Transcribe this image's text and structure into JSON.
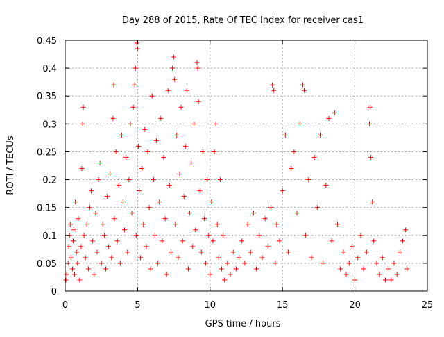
{
  "chart_data": {
    "type": "scatter",
    "title": "Day 288 of 2015, Rate Of TEC Index for receiver cas1",
    "xlabel": "GPS time / hours",
    "ylabel": "ROTI / TECUs",
    "xlim": [
      0,
      25
    ],
    "ylim": [
      0,
      0.45
    ],
    "x_ticks": [
      0,
      5,
      10,
      15,
      20,
      25
    ],
    "y_ticks": [
      0,
      0.05,
      0.1,
      0.15,
      0.2,
      0.25,
      0.3,
      0.35,
      0.4,
      0.45
    ],
    "x_tick_labels": [
      "0",
      "5",
      "10",
      "15",
      "20",
      "25"
    ],
    "y_tick_labels": [
      "0",
      "0.05",
      "0.1",
      "0.15",
      "0.2",
      "0.25",
      "0.3",
      "0.35",
      "0.4",
      "0.45"
    ],
    "grid": true,
    "marker": "+",
    "series_color": "#ff0000",
    "series": [
      {
        "name": "ROTI",
        "points": [
          [
            0.05,
            0.02
          ],
          [
            0.1,
            0.03
          ],
          [
            0.2,
            0.05
          ],
          [
            0.25,
            0.08
          ],
          [
            0.3,
            0.1
          ],
          [
            0.35,
            0.12
          ],
          [
            0.4,
            0.06
          ],
          [
            0.5,
            0.04
          ],
          [
            0.55,
            0.09
          ],
          [
            0.6,
            0.11
          ],
          [
            0.65,
            0.03
          ],
          [
            0.7,
            0.16
          ],
          [
            0.8,
            0.07
          ],
          [
            0.85,
            0.05
          ],
          [
            0.9,
            0.13
          ],
          [
            1.0,
            0.02
          ],
          [
            1.1,
            0.08
          ],
          [
            1.15,
            0.22
          ],
          [
            1.2,
            0.3
          ],
          [
            1.25,
            0.33
          ],
          [
            1.3,
            0.1
          ],
          [
            1.4,
            0.06
          ],
          [
            1.5,
            0.12
          ],
          [
            1.6,
            0.04
          ],
          [
            1.7,
            0.15
          ],
          [
            1.8,
            0.18
          ],
          [
            1.9,
            0.09
          ],
          [
            2.0,
            0.03
          ],
          [
            2.1,
            0.14
          ],
          [
            2.2,
            0.07
          ],
          [
            2.3,
            0.2
          ],
          [
            2.4,
            0.23
          ],
          [
            2.5,
            0.05
          ],
          [
            2.6,
            0.12
          ],
          [
            2.7,
            0.1
          ],
          [
            2.8,
            0.04
          ],
          [
            2.9,
            0.17
          ],
          [
            3.0,
            0.08
          ],
          [
            3.1,
            0.21
          ],
          [
            3.2,
            0.06
          ],
          [
            3.3,
            0.31
          ],
          [
            3.35,
            0.37
          ],
          [
            3.4,
            0.13
          ],
          [
            3.5,
            0.25
          ],
          [
            3.6,
            0.09
          ],
          [
            3.7,
            0.19
          ],
          [
            3.8,
            0.05
          ],
          [
            3.9,
            0.28
          ],
          [
            4.0,
            0.16
          ],
          [
            4.1,
            0.11
          ],
          [
            4.2,
            0.24
          ],
          [
            4.3,
            0.07
          ],
          [
            4.4,
            0.2
          ],
          [
            4.5,
            0.3
          ],
          [
            4.6,
            0.14
          ],
          [
            4.7,
            0.33
          ],
          [
            4.8,
            0.37
          ],
          [
            4.85,
            0.4
          ],
          [
            4.9,
            0.1
          ],
          [
            4.95,
            0.445
          ],
          [
            5.0,
            0.435
          ],
          [
            5.05,
            0.26
          ],
          [
            5.1,
            0.18
          ],
          [
            5.2,
            0.06
          ],
          [
            5.3,
            0.22
          ],
          [
            5.4,
            0.12
          ],
          [
            5.5,
            0.29
          ],
          [
            5.6,
            0.08
          ],
          [
            5.7,
            0.25
          ],
          [
            5.8,
            0.15
          ],
          [
            5.9,
            0.04
          ],
          [
            6.0,
            0.35
          ],
          [
            6.1,
            0.2
          ],
          [
            6.2,
            0.1
          ],
          [
            6.3,
            0.27
          ],
          [
            6.4,
            0.05
          ],
          [
            6.5,
            0.16
          ],
          [
            6.6,
            0.31
          ],
          [
            6.7,
            0.09
          ],
          [
            6.8,
            0.24
          ],
          [
            6.9,
            0.13
          ],
          [
            7.0,
            0.03
          ],
          [
            7.1,
            0.36
          ],
          [
            7.2,
            0.19
          ],
          [
            7.3,
            0.07
          ],
          [
            7.4,
            0.4
          ],
          [
            7.5,
            0.42
          ],
          [
            7.55,
            0.38
          ],
          [
            7.6,
            0.12
          ],
          [
            7.7,
            0.28
          ],
          [
            7.8,
            0.06
          ],
          [
            7.9,
            0.21
          ],
          [
            8.0,
            0.33
          ],
          [
            8.1,
            0.09
          ],
          [
            8.2,
            0.17
          ],
          [
            8.3,
            0.26
          ],
          [
            8.4,
            0.36
          ],
          [
            8.5,
            0.04
          ],
          [
            8.6,
            0.14
          ],
          [
            8.7,
            0.23
          ],
          [
            8.8,
            0.08
          ],
          [
            8.9,
            0.3
          ],
          [
            9.0,
            0.11
          ],
          [
            9.1,
            0.41
          ],
          [
            9.15,
            0.4
          ],
          [
            9.2,
            0.34
          ],
          [
            9.3,
            0.18
          ],
          [
            9.4,
            0.07
          ],
          [
            9.5,
            0.25
          ],
          [
            9.6,
            0.13
          ],
          [
            9.7,
            0.05
          ],
          [
            9.8,
            0.2
          ],
          [
            9.9,
            0.1
          ],
          [
            10.0,
            0.03
          ],
          [
            10.1,
            0.16
          ],
          [
            10.2,
            0.09
          ],
          [
            10.3,
            0.25
          ],
          [
            10.4,
            0.3
          ],
          [
            10.5,
            0.12
          ],
          [
            10.6,
            0.06
          ],
          [
            10.7,
            0.2
          ],
          [
            10.8,
            0.04
          ],
          [
            10.9,
            0.1
          ],
          [
            11.0,
            0.02
          ],
          [
            11.2,
            0.05
          ],
          [
            11.4,
            0.03
          ],
          [
            11.6,
            0.07
          ],
          [
            11.8,
            0.04
          ],
          [
            12.0,
            0.06
          ],
          [
            12.2,
            0.09
          ],
          [
            12.4,
            0.05
          ],
          [
            12.6,
            0.12
          ],
          [
            12.8,
            0.07
          ],
          [
            13.0,
            0.14
          ],
          [
            13.2,
            0.04
          ],
          [
            13.4,
            0.1
          ],
          [
            13.6,
            0.06
          ],
          [
            13.8,
            0.13
          ],
          [
            14.0,
            0.08
          ],
          [
            14.2,
            0.15
          ],
          [
            14.3,
            0.37
          ],
          [
            14.4,
            0.36
          ],
          [
            14.5,
            0.05
          ],
          [
            14.6,
            0.12
          ],
          [
            14.8,
            0.09
          ],
          [
            15.0,
            0.18
          ],
          [
            15.2,
            0.28
          ],
          [
            15.4,
            0.07
          ],
          [
            15.6,
            0.22
          ],
          [
            15.8,
            0.25
          ],
          [
            16.0,
            0.14
          ],
          [
            16.2,
            0.3
          ],
          [
            16.4,
            0.37
          ],
          [
            16.5,
            0.36
          ],
          [
            16.6,
            0.1
          ],
          [
            16.8,
            0.2
          ],
          [
            17.0,
            0.06
          ],
          [
            17.2,
            0.24
          ],
          [
            17.4,
            0.15
          ],
          [
            17.6,
            0.28
          ],
          [
            17.8,
            0.05
          ],
          [
            18.0,
            0.19
          ],
          [
            18.2,
            0.31
          ],
          [
            18.4,
            0.09
          ],
          [
            18.6,
            0.32
          ],
          [
            18.8,
            0.12
          ],
          [
            19.0,
            0.04
          ],
          [
            19.2,
            0.07
          ],
          [
            19.4,
            0.03
          ],
          [
            19.6,
            0.05
          ],
          [
            19.8,
            0.08
          ],
          [
            20.0,
            0.02
          ],
          [
            20.2,
            0.06
          ],
          [
            20.4,
            0.1
          ],
          [
            20.6,
            0.04
          ],
          [
            20.8,
            0.07
          ],
          [
            21.0,
            0.3
          ],
          [
            21.05,
            0.33
          ],
          [
            21.1,
            0.24
          ],
          [
            21.2,
            0.16
          ],
          [
            21.3,
            0.09
          ],
          [
            21.5,
            0.05
          ],
          [
            21.7,
            0.03
          ],
          [
            21.9,
            0.06
          ],
          [
            22.1,
            0.02
          ],
          [
            22.3,
            0.04
          ],
          [
            22.5,
            0.02
          ],
          [
            22.7,
            0.05
          ],
          [
            22.9,
            0.03
          ],
          [
            23.1,
            0.07
          ],
          [
            23.3,
            0.09
          ],
          [
            23.5,
            0.11
          ],
          [
            23.6,
            0.04
          ]
        ]
      }
    ]
  }
}
